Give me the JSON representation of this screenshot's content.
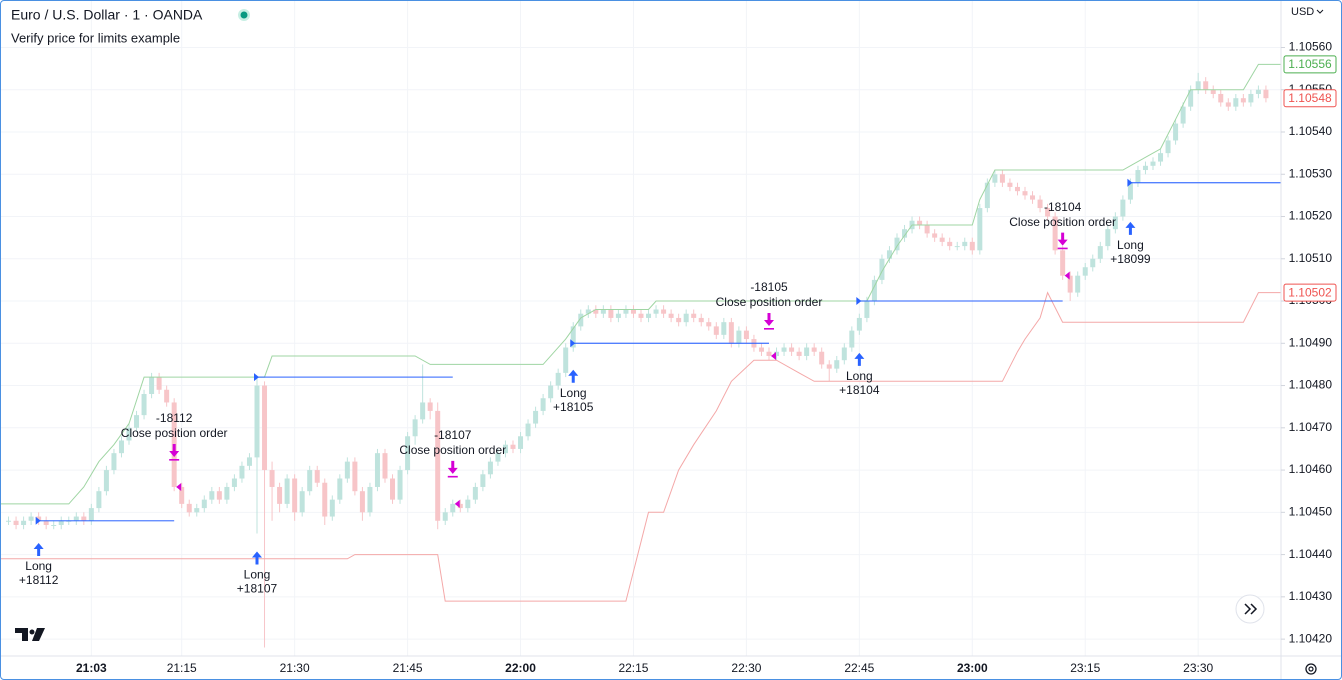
{
  "header": {
    "symbol": "Euro / U.S. Dollar · 1 · OANDA",
    "study": "Verify price for limits example",
    "currency": "USD"
  },
  "chart_data": {
    "type": "candlestick",
    "grid": true,
    "xlim": [
      1251,
      1421
    ],
    "xticks": [
      {
        "value": 1263,
        "label": "21:03"
      },
      {
        "value": 1275,
        "label": "21:15"
      },
      {
        "value": 1290,
        "label": "21:30"
      },
      {
        "value": 1305,
        "label": "21:45"
      },
      {
        "value": 1320,
        "label": "22:00"
      },
      {
        "value": 1335,
        "label": "22:15"
      },
      {
        "value": 1350,
        "label": "22:30"
      },
      {
        "value": 1365,
        "label": "22:45"
      },
      {
        "value": 1380,
        "label": "23:00"
      },
      {
        "value": 1395,
        "label": "23:15"
      },
      {
        "value": 1410,
        "label": "23:30"
      }
    ],
    "ylim": [
      1.10416,
      1.10571
    ],
    "yticks": [
      {
        "value": 1.1042,
        "label": "1.10420"
      },
      {
        "value": 1.1043,
        "label": "1.10430"
      },
      {
        "value": 1.1044,
        "label": "1.10440"
      },
      {
        "value": 1.1045,
        "label": "1.10450"
      },
      {
        "value": 1.1046,
        "label": "1.10460"
      },
      {
        "value": 1.1047,
        "label": "1.10470"
      },
      {
        "value": 1.1048,
        "label": "1.10480"
      },
      {
        "value": 1.1049,
        "label": "1.10490"
      },
      {
        "value": 1.105,
        "label": "1.10500"
      },
      {
        "value": 1.1051,
        "label": "1.10510"
      },
      {
        "value": 1.1052,
        "label": "1.10520"
      },
      {
        "value": 1.1053,
        "label": "1.10530"
      },
      {
        "value": 1.1054,
        "label": "1.10540"
      },
      {
        "value": 1.1055,
        "label": "1.10550"
      },
      {
        "value": 1.1056,
        "label": "1.10560"
      }
    ],
    "up_color": "#bfe3dd",
    "down_color": "#f7c5c8",
    "x": [
      1252,
      1253,
      1254,
      1255,
      1256,
      1257,
      1258,
      1259,
      1260,
      1261,
      1262,
      1263,
      1264,
      1265,
      1266,
      1267,
      1268,
      1269,
      1270,
      1271,
      1272,
      1273,
      1274,
      1275,
      1276,
      1277,
      1278,
      1279,
      1280,
      1281,
      1282,
      1283,
      1284,
      1285,
      1286,
      1287,
      1288,
      1289,
      1290,
      1291,
      1292,
      1293,
      1294,
      1295,
      1296,
      1297,
      1298,
      1299,
      1300,
      1301,
      1302,
      1303,
      1304,
      1305,
      1306,
      1307,
      1308,
      1309,
      1310,
      1311,
      1312,
      1313,
      1314,
      1315,
      1316,
      1317,
      1318,
      1319,
      1320,
      1321,
      1322,
      1323,
      1324,
      1325,
      1326,
      1327,
      1328,
      1329,
      1330,
      1331,
      1332,
      1333,
      1334,
      1335,
      1336,
      1337,
      1338,
      1339,
      1340,
      1341,
      1342,
      1343,
      1344,
      1345,
      1346,
      1347,
      1348,
      1349,
      1350,
      1351,
      1352,
      1353,
      1354,
      1355,
      1356,
      1357,
      1358,
      1359,
      1360,
      1361,
      1362,
      1363,
      1364,
      1365,
      1366,
      1367,
      1368,
      1369,
      1370,
      1371,
      1372,
      1373,
      1374,
      1375,
      1376,
      1377,
      1378,
      1379,
      1380,
      1381,
      1382,
      1383,
      1384,
      1385,
      1386,
      1387,
      1388,
      1389,
      1390,
      1391,
      1392,
      1393,
      1394,
      1395,
      1396,
      1397,
      1398,
      1399,
      1400,
      1401,
      1402,
      1403,
      1404,
      1405,
      1406,
      1407,
      1408,
      1409,
      1410,
      1411,
      1412,
      1413,
      1414,
      1415,
      1416,
      1417,
      1418,
      1419
    ],
    "open": [
      1.10448,
      1.10448,
      1.10447,
      1.10448,
      1.10449,
      1.10448,
      1.10447,
      1.10447,
      1.10448,
      1.10448,
      1.10449,
      1.10448,
      1.10451,
      1.10455,
      1.1046,
      1.10464,
      1.10467,
      1.1047,
      1.10473,
      1.10478,
      1.10482,
      1.10479,
      1.10476,
      1.10456,
      1.10452,
      1.1045,
      1.10451,
      1.10453,
      1.10455,
      1.10453,
      1.10456,
      1.10458,
      1.10461,
      1.10463,
      1.1048,
      1.1046,
      1.10456,
      1.10452,
      1.10458,
      1.1045,
      1.10455,
      1.1046,
      1.10457,
      1.10449,
      1.10453,
      1.10458,
      1.10462,
      1.10455,
      1.1045,
      1.10456,
      1.10464,
      1.10458,
      1.10453,
      1.1046,
      1.10468,
      1.10472,
      1.10476,
      1.10474,
      1.10448,
      1.1045,
      1.10452,
      1.10451,
      1.10453,
      1.10456,
      1.10459,
      1.10462,
      1.10464,
      1.10466,
      1.10465,
      1.10468,
      1.10471,
      1.10474,
      1.10477,
      1.1048,
      1.10483,
      1.10489,
      1.10494,
      1.10497,
      1.10498,
      1.10497,
      1.10498,
      1.10496,
      1.10497,
      1.10498,
      1.10497,
      1.10496,
      1.10497,
      1.10498,
      1.10497,
      1.10496,
      1.10495,
      1.10497,
      1.10496,
      1.10495,
      1.10494,
      1.10492,
      1.10495,
      1.1049,
      1.10493,
      1.10491,
      1.10489,
      1.10488,
      1.10487,
      1.10488,
      1.10489,
      1.10488,
      1.10487,
      1.10489,
      1.10488,
      1.10485,
      1.10484,
      1.10486,
      1.10489,
      1.10493,
      1.10496,
      1.105,
      1.10505,
      1.1051,
      1.10512,
      1.10515,
      1.10517,
      1.10519,
      1.10518,
      1.10516,
      1.10515,
      1.10514,
      1.10513,
      1.10513,
      1.10514,
      1.10512,
      1.10522,
      1.10528,
      1.1053,
      1.10528,
      1.10527,
      1.10526,
      1.10525,
      1.10524,
      1.10522,
      1.1052,
      1.10512,
      1.10506,
      1.10502,
      1.10506,
      1.10508,
      1.1051,
      1.10513,
      1.10517,
      1.1052,
      1.10524,
      1.10528,
      1.10531,
      1.10532,
      1.10533,
      1.10535,
      1.10538,
      1.10542,
      1.10546,
      1.1055,
      1.10552,
      1.1055,
      1.10549,
      1.10547,
      1.10546,
      1.10548,
      1.10547,
      1.10549,
      1.1055
    ],
    "high": [
      1.10449,
      1.10449,
      1.10449,
      1.1045,
      1.1045,
      1.10449,
      1.10448,
      1.10449,
      1.10449,
      1.1045,
      1.1045,
      1.10452,
      1.10456,
      1.10461,
      1.10465,
      1.10468,
      1.10471,
      1.10474,
      1.10479,
      1.10483,
      1.10483,
      1.1048,
      1.10477,
      1.10457,
      1.10453,
      1.10452,
      1.10454,
      1.10456,
      1.10456,
      1.10457,
      1.10459,
      1.10462,
      1.10464,
      1.10482,
      1.10481,
      1.10462,
      1.10457,
      1.10459,
      1.10459,
      1.10456,
      1.10461,
      1.10461,
      1.10458,
      1.10454,
      1.10459,
      1.10463,
      1.10463,
      1.10456,
      1.10457,
      1.10465,
      1.10465,
      1.10459,
      1.10461,
      1.10469,
      1.10473,
      1.10485,
      1.10477,
      1.10476,
      1.10451,
      1.10453,
      1.10453,
      1.10454,
      1.10457,
      1.1046,
      1.10463,
      1.10465,
      1.10467,
      1.10467,
      1.10469,
      1.10472,
      1.10475,
      1.10478,
      1.10481,
      1.10484,
      1.1049,
      1.10495,
      1.10498,
      1.10499,
      1.10499,
      1.10499,
      1.10499,
      1.10498,
      1.10499,
      1.10499,
      1.10498,
      1.10498,
      1.10499,
      1.10499,
      1.10498,
      1.10497,
      1.10498,
      1.10498,
      1.10497,
      1.10496,
      1.10495,
      1.10496,
      1.10496,
      1.10494,
      1.10494,
      1.10492,
      1.1049,
      1.10489,
      1.10489,
      1.1049,
      1.1049,
      1.10489,
      1.1049,
      1.1049,
      1.10489,
      1.10486,
      1.10487,
      1.1049,
      1.10494,
      1.10497,
      1.10501,
      1.10506,
      1.10511,
      1.10513,
      1.10516,
      1.10518,
      1.1052,
      1.1052,
      1.10519,
      1.10517,
      1.10516,
      1.10515,
      1.10514,
      1.10515,
      1.10515,
      1.10523,
      1.10529,
      1.10531,
      1.10531,
      1.10529,
      1.10528,
      1.10527,
      1.10526,
      1.10525,
      1.10523,
      1.10521,
      1.10513,
      1.10507,
      1.10507,
      1.10509,
      1.10511,
      1.10514,
      1.10518,
      1.10521,
      1.10525,
      1.10529,
      1.10532,
      1.10533,
      1.10534,
      1.10536,
      1.10539,
      1.10543,
      1.10547,
      1.10551,
      1.10554,
      1.10553,
      1.10551,
      1.1055,
      1.10548,
      1.10549,
      1.10549,
      1.1055,
      1.10551,
      1.10551
    ],
    "low": [
      1.10447,
      1.10446,
      1.10446,
      1.10447,
      1.10447,
      1.10446,
      1.10446,
      1.10446,
      1.10447,
      1.10447,
      1.10447,
      1.10447,
      1.1045,
      1.10454,
      1.10459,
      1.10463,
      1.10466,
      1.10469,
      1.10472,
      1.10477,
      1.10478,
      1.10475,
      1.10455,
      1.10451,
      1.10449,
      1.10449,
      1.1045,
      1.10452,
      1.10452,
      1.10452,
      1.10455,
      1.10457,
      1.1046,
      1.10445,
      1.10418,
      1.10448,
      1.1045,
      1.10451,
      1.10448,
      1.10449,
      1.10454,
      1.10456,
      1.10447,
      1.10448,
      1.10452,
      1.10457,
      1.10454,
      1.10448,
      1.10449,
      1.10455,
      1.10457,
      1.10452,
      1.10452,
      1.10459,
      1.10466,
      1.10471,
      1.10472,
      1.10446,
      1.10447,
      1.10449,
      1.1045,
      1.1045,
      1.10452,
      1.10455,
      1.10458,
      1.10461,
      1.10463,
      1.10464,
      1.10464,
      1.10467,
      1.1047,
      1.10473,
      1.10476,
      1.10479,
      1.10482,
      1.10488,
      1.10493,
      1.10496,
      1.10496,
      1.10496,
      1.10495,
      1.10495,
      1.10496,
      1.10496,
      1.10495,
      1.10495,
      1.10496,
      1.10496,
      1.10495,
      1.10494,
      1.10494,
      1.10495,
      1.10494,
      1.10493,
      1.10491,
      1.10491,
      1.10489,
      1.10489,
      1.1049,
      1.10488,
      1.10487,
      1.10486,
      1.10486,
      1.10487,
      1.10487,
      1.10486,
      1.10486,
      1.10487,
      1.10484,
      1.10481,
      1.10483,
      1.10485,
      1.10488,
      1.10492,
      1.10495,
      1.10499,
      1.10504,
      1.10509,
      1.10511,
      1.10514,
      1.10516,
      1.10517,
      1.10515,
      1.10514,
      1.10513,
      1.10512,
      1.10512,
      1.10512,
      1.10511,
      1.10511,
      1.10521,
      1.10527,
      1.10527,
      1.10526,
      1.10525,
      1.10524,
      1.10523,
      1.10521,
      1.10519,
      1.10511,
      1.10505,
      1.105,
      1.10501,
      1.10505,
      1.10507,
      1.10509,
      1.10512,
      1.10516,
      1.10519,
      1.10523,
      1.10527,
      1.1053,
      1.10531,
      1.10532,
      1.10534,
      1.10537,
      1.10541,
      1.10545,
      1.10549,
      1.10549,
      1.10548,
      1.10546,
      1.10545,
      1.10545,
      1.10546,
      1.10546,
      1.10548,
      1.10547
    ],
    "close": [
      1.10448,
      1.10447,
      1.10448,
      1.10449,
      1.10448,
      1.10447,
      1.10447,
      1.10448,
      1.10448,
      1.10449,
      1.10448,
      1.10451,
      1.10455,
      1.1046,
      1.10464,
      1.10467,
      1.1047,
      1.10473,
      1.10478,
      1.10482,
      1.10479,
      1.10476,
      1.10456,
      1.10452,
      1.1045,
      1.10451,
      1.10453,
      1.10455,
      1.10453,
      1.10456,
      1.10458,
      1.10461,
      1.10463,
      1.1048,
      1.1046,
      1.10456,
      1.10452,
      1.10458,
      1.1045,
      1.10455,
      1.1046,
      1.10457,
      1.10449,
      1.10453,
      1.10458,
      1.10462,
      1.10455,
      1.1045,
      1.10456,
      1.10464,
      1.10458,
      1.10453,
      1.1046,
      1.10468,
      1.10472,
      1.10476,
      1.10474,
      1.10448,
      1.1045,
      1.10452,
      1.10451,
      1.10453,
      1.10456,
      1.10459,
      1.10462,
      1.10464,
      1.10466,
      1.10465,
      1.10468,
      1.10471,
      1.10474,
      1.10477,
      1.1048,
      1.10483,
      1.10489,
      1.10494,
      1.10497,
      1.10498,
      1.10497,
      1.10498,
      1.10496,
      1.10497,
      1.10498,
      1.10497,
      1.10496,
      1.10497,
      1.10498,
      1.10497,
      1.10496,
      1.10495,
      1.10497,
      1.10496,
      1.10495,
      1.10494,
      1.10492,
      1.10495,
      1.1049,
      1.10493,
      1.10491,
      1.10489,
      1.10488,
      1.10487,
      1.10488,
      1.10489,
      1.10488,
      1.10487,
      1.10489,
      1.10488,
      1.10485,
      1.10484,
      1.10486,
      1.10489,
      1.10493,
      1.10496,
      1.105,
      1.10505,
      1.1051,
      1.10512,
      1.10515,
      1.10517,
      1.10519,
      1.10518,
      1.10516,
      1.10515,
      1.10514,
      1.10513,
      1.10513,
      1.10514,
      1.10512,
      1.10522,
      1.10528,
      1.1053,
      1.10528,
      1.10527,
      1.10526,
      1.10525,
      1.10524,
      1.10522,
      1.1052,
      1.10512,
      1.10506,
      1.10502,
      1.10506,
      1.10508,
      1.1051,
      1.10513,
      1.10517,
      1.1052,
      1.10524,
      1.10528,
      1.10531,
      1.10532,
      1.10533,
      1.10535,
      1.10538,
      1.10542,
      1.10546,
      1.1055,
      1.10552,
      1.1055,
      1.10549,
      1.10547,
      1.10546,
      1.10548,
      1.10547,
      1.10549,
      1.1055,
      1.10548
    ],
    "upper_band": {
      "color": "#9fd5a3",
      "x": [
        1251,
        1260,
        1262,
        1264,
        1266,
        1268,
        1270,
        1286,
        1287,
        1306,
        1308,
        1323,
        1326,
        1328,
        1330,
        1337,
        1338,
        1366,
        1368,
        1370,
        1372,
        1380,
        1381,
        1383,
        1400,
        1402,
        1405,
        1407,
        1409,
        1416,
        1418,
        1421
      ],
      "values": [
        1.10452,
        1.10452,
        1.10456,
        1.10462,
        1.10466,
        1.10471,
        1.10482,
        1.10482,
        1.10487,
        1.10487,
        1.10485,
        1.10485,
        1.10491,
        1.10496,
        1.10498,
        1.10498,
        1.105,
        1.105,
        1.10507,
        1.10513,
        1.10518,
        1.10518,
        1.10524,
        1.10531,
        1.10531,
        1.10533,
        1.10536,
        1.10543,
        1.1055,
        1.1055,
        1.10556,
        1.10556
      ]
    },
    "lower_band": {
      "color": "#f4a8a8",
      "x": [
        1251,
        1297,
        1298,
        1309,
        1310,
        1334,
        1336,
        1337,
        1339,
        1341,
        1343,
        1346,
        1348,
        1351,
        1354,
        1357,
        1359,
        1384,
        1386,
        1387,
        1389,
        1390,
        1392,
        1416,
        1418,
        1421
      ],
      "values": [
        1.10439,
        1.10439,
        1.1044,
        1.1044,
        1.10429,
        1.10429,
        1.10443,
        1.1045,
        1.1045,
        1.1046,
        1.10466,
        1.10474,
        1.10481,
        1.10486,
        1.10486,
        1.10483,
        1.10481,
        1.10481,
        1.10488,
        1.10491,
        1.10496,
        1.10502,
        1.10495,
        1.10495,
        1.10502,
        1.10502
      ]
    },
    "trade_color": "#2962ff",
    "exit_color": "#d500d5",
    "trades": [
      {
        "entry_x": 1256,
        "entry_price": 1.10448,
        "exit_x": 1274,
        "entry_label": "Long",
        "entry_qty": "+18112",
        "exit_qty": "-18112",
        "exit_label": "Close position order"
      },
      {
        "entry_x": 1285,
        "entry_price": 1.10482,
        "exit_x": 1311,
        "entry_label": "Long",
        "entry_qty": "+18107",
        "exit_qty": "-18107",
        "exit_label": "Close position order"
      },
      {
        "entry_x": 1327,
        "entry_price": 1.1049,
        "exit_x": 1353,
        "entry_label": "Long",
        "entry_qty": "+18105",
        "exit_qty": "-18105",
        "exit_label": "Close position order"
      },
      {
        "entry_x": 1365,
        "entry_price": 1.105,
        "exit_x": 1392,
        "entry_label": "Long",
        "entry_qty": "+18104",
        "exit_qty": "-18104",
        "exit_label": "Close position order"
      },
      {
        "entry_x": 1401,
        "entry_price": 1.10528,
        "entry_label": "Long",
        "entry_qty": "+18099"
      }
    ],
    "price_labels": [
      {
        "value": 1.10556,
        "label": "1.10556",
        "color": "#4caf50"
      },
      {
        "value": 1.10548,
        "label": "1.10548",
        "color": "#ef5350"
      },
      {
        "value": 1.10502,
        "label": "1.10502",
        "color": "#ef5350"
      }
    ]
  }
}
